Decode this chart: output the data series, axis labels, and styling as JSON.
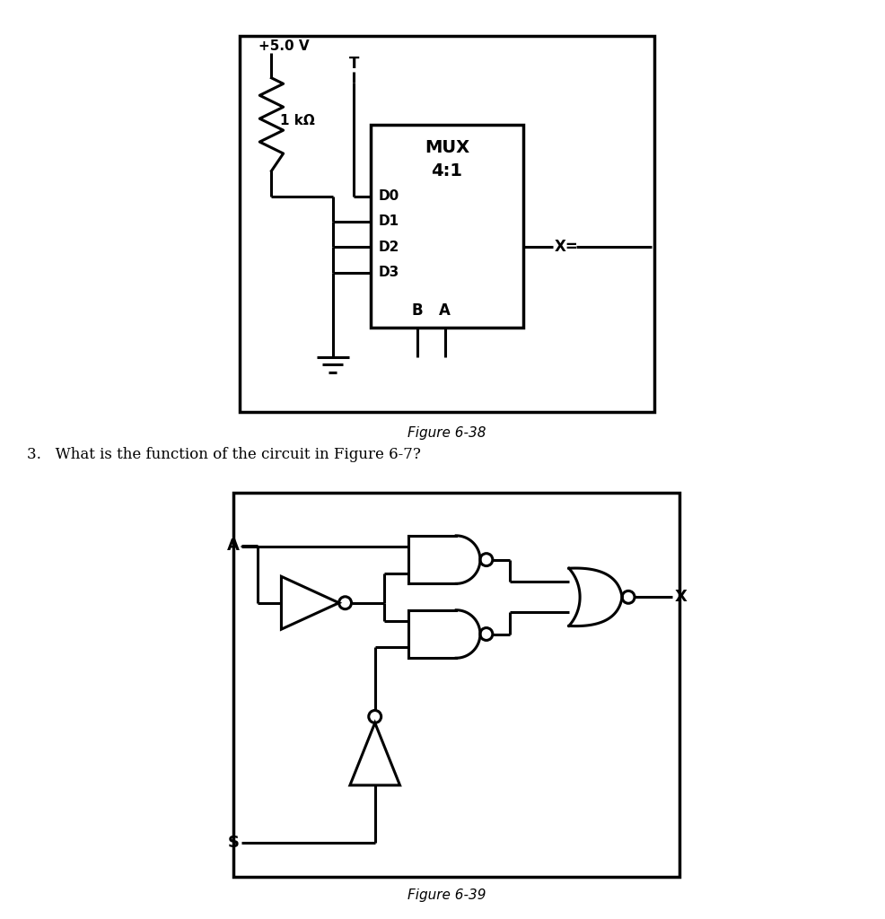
{
  "fig_width": 9.86,
  "fig_height": 10.24,
  "dpi": 100,
  "bg_color": "#ffffff",
  "line_color": "#000000",
  "line_width": 2.2,
  "fig1_caption": "Figure 6-38",
  "fig2_caption": "Figure 6-39",
  "question_text": "3.   What is the function of the circuit in Figure 6-7?",
  "mux_title": "MUX",
  "mux_subtitle": "4:1",
  "vcc_label": "+5.0 V",
  "resistor_label": "1 kΩ",
  "input_T_label": "T",
  "d_labels": [
    "D0",
    "D1",
    "D2",
    "D3"
  ],
  "sel_labels": [
    "B",
    "A"
  ],
  "output_label": "X=",
  "fig2_input_A": "A",
  "fig2_input_S": "S",
  "fig2_output_X": "X"
}
